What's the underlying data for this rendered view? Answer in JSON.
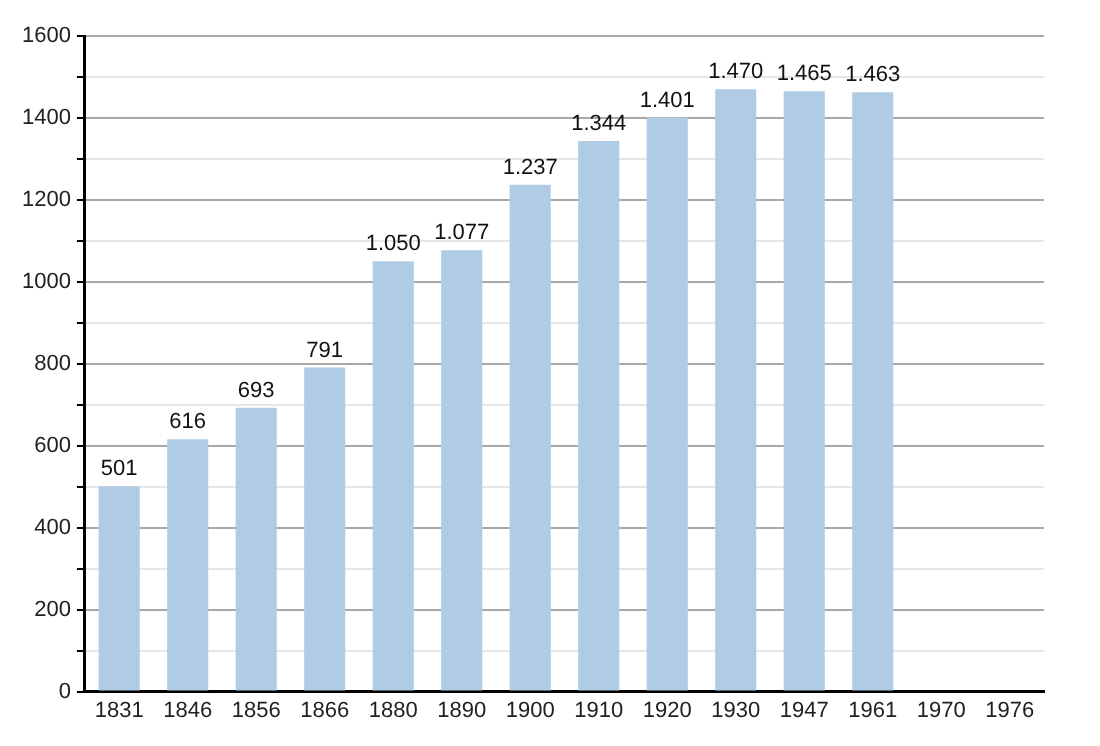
{
  "chart_data": {
    "type": "bar",
    "categories": [
      "1831",
      "1846",
      "1856",
      "1866",
      "1880",
      "1890",
      "1900",
      "1910",
      "1920",
      "1930",
      "1947",
      "1961",
      "1970",
      "1976"
    ],
    "values": [
      501,
      616,
      693,
      791,
      1050,
      1077,
      1237,
      1344,
      1401,
      1470,
      1465,
      1463,
      null,
      null
    ],
    "value_labels": [
      "501",
      "616",
      "693",
      "791",
      "1.050",
      "1.077",
      "1.237",
      "1.344",
      "1.401",
      "1.470",
      "1.465",
      "1.463",
      null,
      null
    ],
    "color": "#b0cbe4",
    "ylim": [
      0,
      1600
    ],
    "yticks": [
      0,
      {
        "value": 100,
        "label": null
      },
      200,
      {
        "value": 300,
        "label": null
      },
      400,
      {
        "value": 500,
        "label": null
      },
      600,
      {
        "value": 700,
        "label": null
      },
      800,
      {
        "value": 900,
        "label": null
      },
      1000,
      {
        "value": 1100,
        "label": null
      },
      1200,
      {
        "value": 1300,
        "label": null
      },
      1400,
      {
        "value": 1500,
        "label": null
      },
      1600
    ],
    "grid": "y"
  }
}
